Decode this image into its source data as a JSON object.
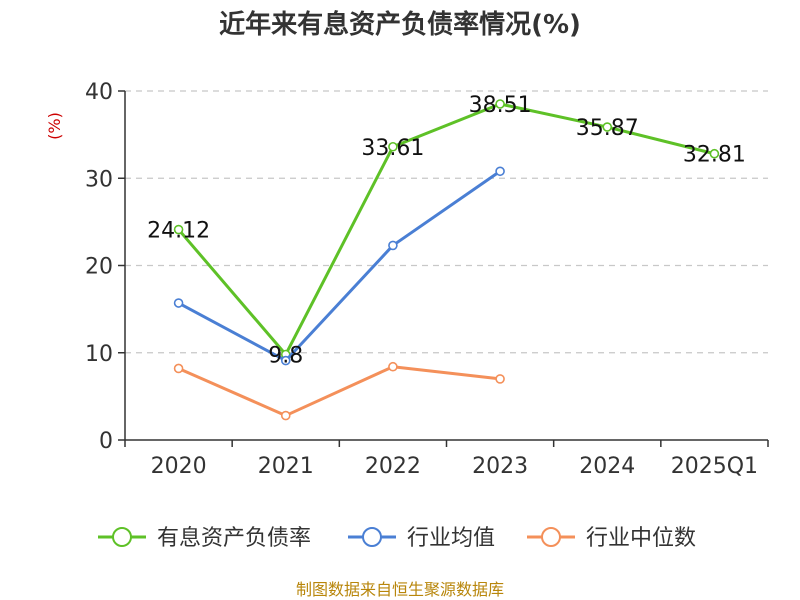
{
  "chart_data": {
    "type": "line",
    "title": "近年来有息资产负债率情况(%)",
    "ylabel": "(%)",
    "categories": [
      "2020",
      "2021",
      "2022",
      "2023",
      "2024",
      "2025Q1"
    ],
    "ylim": [
      0,
      40
    ],
    "yticks": [
      0,
      10,
      20,
      30,
      40
    ],
    "grid": true,
    "legend_position": "bottom",
    "series": [
      {
        "name": "有息资产负债率",
        "color": "#5ec127",
        "values": [
          24.12,
          9.8,
          33.61,
          38.51,
          35.87,
          32.81
        ],
        "labels": [
          "24.12",
          "9.8",
          "33.61",
          "38.51",
          "35.87",
          "32.81"
        ]
      },
      {
        "name": "行业均值",
        "color": "#4a7fd4",
        "values": [
          15.7,
          9.1,
          22.3,
          30.8,
          null,
          null
        ]
      },
      {
        "name": "行业中位数",
        "color": "#f4905a",
        "values": [
          8.2,
          2.8,
          8.4,
          7.0,
          null,
          null
        ]
      }
    ]
  },
  "source": "制图数据来自恒生聚源数据库"
}
